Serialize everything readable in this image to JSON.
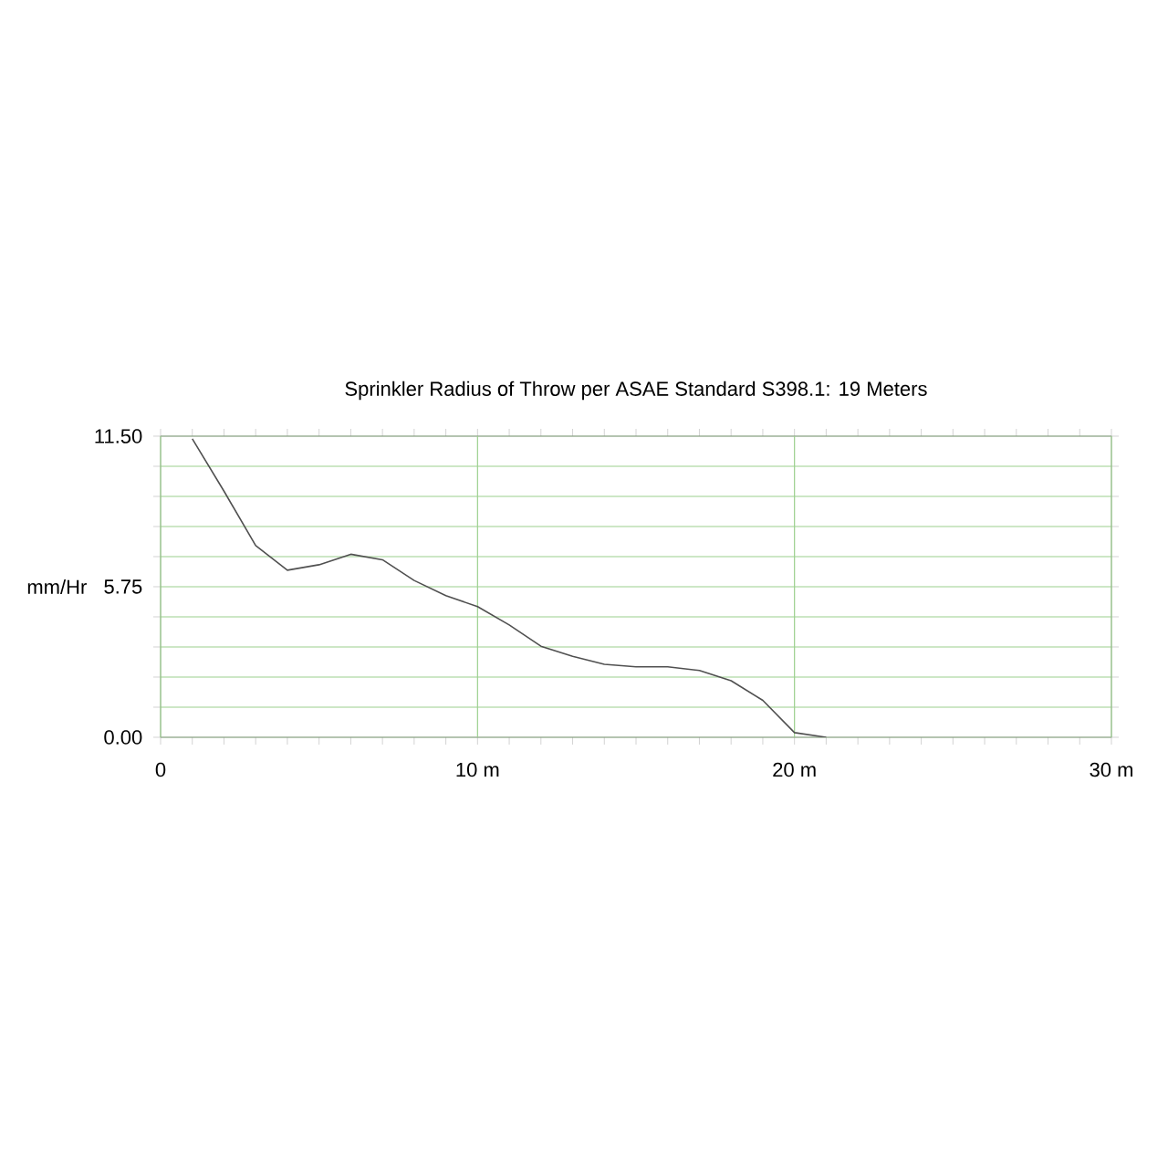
{
  "chart_data": {
    "type": "line",
    "title": "Sprinkler Radius of Throw per ASAE Standard S398.1: 19 Meters",
    "ylabel": "mm/Hr",
    "x": [
      1,
      2,
      3,
      4,
      5,
      6,
      7,
      8,
      9,
      10,
      11,
      12,
      13,
      14,
      15,
      16,
      17,
      18,
      19,
      20,
      21
    ],
    "series": [
      {
        "color": "#505050",
        "values": [
          11.4,
          9.4,
          7.32,
          6.38,
          6.59,
          6.99,
          6.78,
          5.99,
          5.41,
          4.99,
          4.29,
          3.48,
          3.09,
          2.79,
          2.69,
          2.69,
          2.55,
          2.16,
          1.41,
          0.18,
          0
        ]
      }
    ],
    "xlim": [
      0,
      30
    ],
    "ylim": [
      0,
      11.5
    ],
    "xticks": [
      0,
      {
        "value": 1,
        "label": null
      },
      {
        "value": 2,
        "label": null
      },
      {
        "value": 3,
        "label": null
      },
      {
        "value": 4,
        "label": null
      },
      {
        "value": 5,
        "label": null
      },
      {
        "value": 6,
        "label": null
      },
      {
        "value": 7,
        "label": null
      },
      {
        "value": 8,
        "label": null
      },
      {
        "value": 9,
        "label": null
      },
      {
        "value": 10,
        "label": "10 m"
      },
      {
        "value": 11,
        "label": null
      },
      {
        "value": 12,
        "label": null
      },
      {
        "value": 13,
        "label": null
      },
      {
        "value": 14,
        "label": null
      },
      {
        "value": 15,
        "label": null
      },
      {
        "value": 16,
        "label": null
      },
      {
        "value": 17,
        "label": null
      },
      {
        "value": 18,
        "label": null
      },
      {
        "value": 19,
        "label": null
      },
      {
        "value": 20,
        "label": "20 m"
      },
      {
        "value": 21,
        "label": null
      },
      {
        "value": 22,
        "label": null
      },
      {
        "value": 23,
        "label": null
      },
      {
        "value": 24,
        "label": null
      },
      {
        "value": 25,
        "label": null
      },
      {
        "value": 26,
        "label": null
      },
      {
        "value": 27,
        "label": null
      },
      {
        "value": 28,
        "label": null
      },
      {
        "value": 29,
        "label": null
      },
      {
        "value": 30,
        "label": "30 m"
      }
    ],
    "yticks": [
      {
        "value": 0,
        "label": "0.00"
      },
      {
        "value": 1.15,
        "label": null
      },
      {
        "value": 2.3,
        "label": null
      },
      {
        "value": 3.45,
        "label": null
      },
      {
        "value": 4.6,
        "label": null
      },
      {
        "value": 5.75,
        "label": "5.75"
      },
      {
        "value": 6.9,
        "label": null
      },
      {
        "value": 8.05,
        "label": null
      },
      {
        "value": 9.2,
        "label": null
      },
      {
        "value": 10.35,
        "label": null
      },
      {
        "value": 11.5,
        "label": "11.50"
      }
    ],
    "grid": true,
    "legend": false,
    "marker": "none",
    "line_style": "solid"
  }
}
